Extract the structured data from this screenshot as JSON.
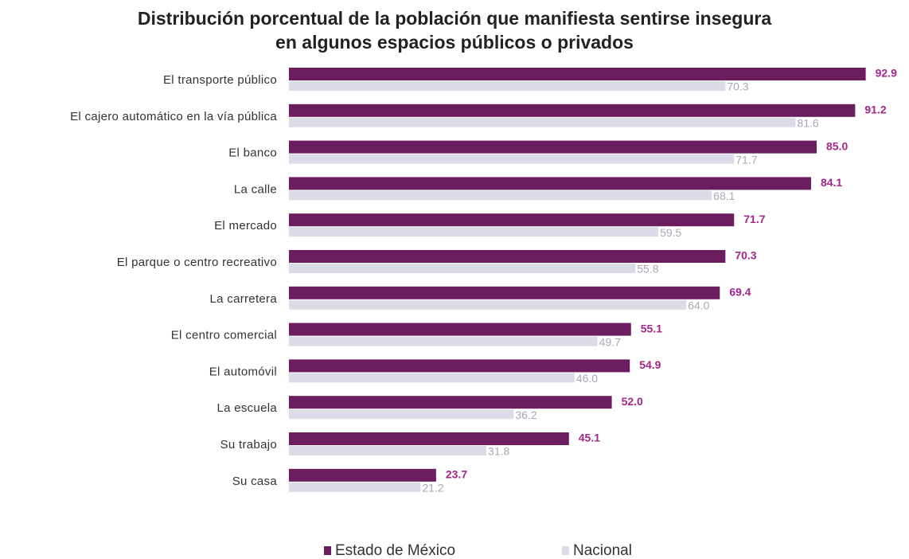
{
  "chart_data": {
    "type": "bar",
    "orientation": "horizontal",
    "title": "Distribución porcentual de la población que manifiesta sentirse insegura en algunos espacios públicos o privados",
    "categories": [
      "El transporte público",
      "El cajero automático en la vía pública",
      "El banco",
      "La calle",
      "El mercado",
      "El parque o centro recreativo",
      "La carretera",
      "El centro comercial",
      "El automóvil",
      "La escuela",
      "Su trabajo",
      "Su casa"
    ],
    "series": [
      {
        "name": "Estado de México",
        "color": "#6b1d5f",
        "label_color": "#a3268a",
        "values": [
          92.9,
          91.2,
          85,
          84.1,
          71.7,
          70.3,
          69.4,
          55.1,
          54.9,
          52,
          45.1,
          23.7
        ],
        "value_labels": [
          "92.9",
          "91.2",
          "85.0",
          "84.1",
          "71.7",
          "70.3",
          "69.4",
          "55.1",
          "54.9",
          "52.0",
          "45.1",
          "23.7"
        ]
      },
      {
        "name": "Nacional",
        "color": "#dcdce8",
        "label_color": "#a8a8b4",
        "values": [
          70.3,
          81.6,
          71.7,
          68.1,
          59.5,
          55.8,
          64,
          49.7,
          46,
          36.2,
          31.8,
          21.2
        ],
        "value_labels": [
          "70.3",
          "81.6",
          "71.7",
          "68.1",
          "59.5",
          "55.8",
          "64.0",
          "49.7",
          "46.0",
          "36.2",
          "31.8",
          "21.2"
        ]
      }
    ],
    "legend": "bottom"
  }
}
